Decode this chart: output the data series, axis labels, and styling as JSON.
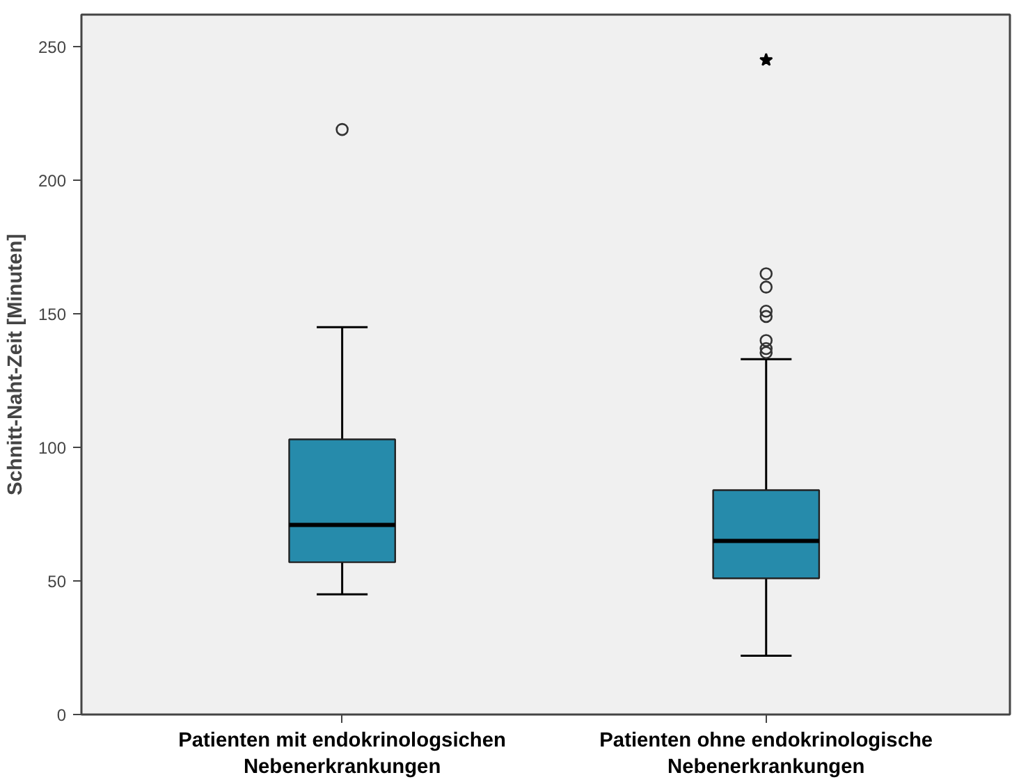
{
  "chart_data": {
    "type": "box",
    "ylabel": "Schnitt-Naht-Zeit [Minuten]",
    "categories": [
      "Patienten mit endokrinologsichen Nebenerkrankungen",
      "Patienten ohne endokrinologische Nebenerkrankungen"
    ],
    "series": [
      {
        "color": "#268bab",
        "boxes": [
          {
            "low": 45,
            "q1": 57,
            "median": 71,
            "q3": 103,
            "high": 145,
            "outliers": [
              219
            ]
          },
          {
            "low": 22,
            "q1": 51,
            "median": 65,
            "q3": 84,
            "high": 133,
            "outliers": [
              165,
              160,
              151,
              149,
              140,
              137,
              135.5
            ]
          }
        ]
      },
      {
        "type": "scatter",
        "color": "#000000",
        "marker": "star",
        "x": [
          "Patienten ohne endokrinologische Nebenerkrankungen"
        ],
        "values": [
          245
        ]
      }
    ],
    "ylim": [
      0,
      262
    ],
    "yticks": [
      0,
      50,
      100,
      150,
      200,
      250
    ],
    "grid": false
  }
}
